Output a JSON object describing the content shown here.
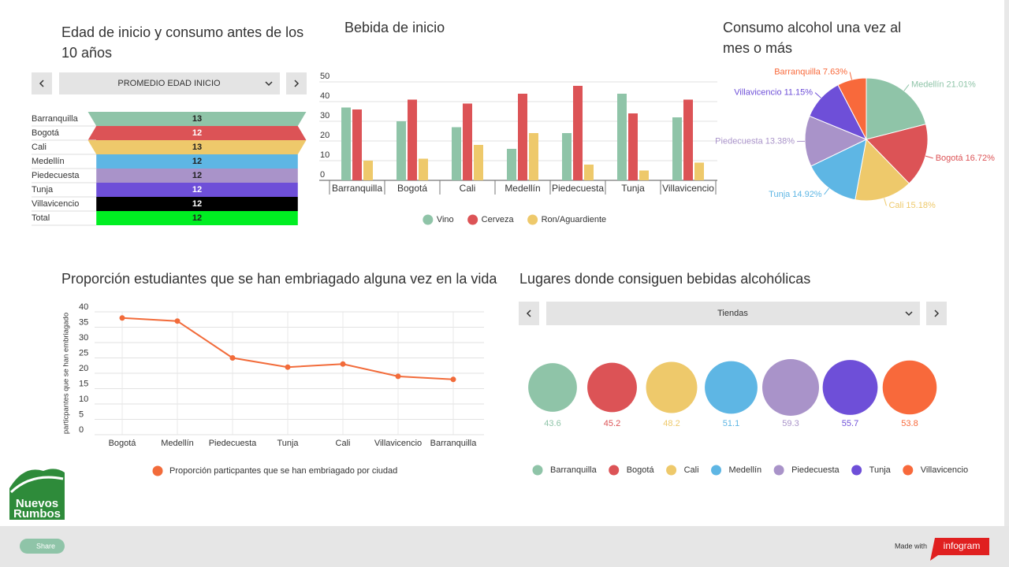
{
  "chart_data": [
    {
      "type": "funnel",
      "title": "Edad de inicio y consumo antes de los 10 años",
      "selector": "PROMEDIO EDAD INICIO",
      "categories": [
        "Barranquilla",
        "Bogotá",
        "Cali",
        "Medellín",
        "Piedecuesta",
        "Tunja",
        "Villavicencio",
        "Total"
      ],
      "values": [
        13,
        12,
        13,
        12,
        12,
        12,
        12,
        12
      ],
      "colors": [
        "#8fc4a8",
        "#dc5356",
        "#eec96b",
        "#5eb6e4",
        "#a993c9",
        "#6e4fd8",
        "#000000",
        "#00ee22"
      ]
    },
    {
      "type": "bar",
      "title": "Bebida de inicio",
      "categories": [
        "Barranquilla",
        "Bogotá",
        "Cali",
        "Medellín",
        "Piedecuesta",
        "Tunja",
        "Villavicencio"
      ],
      "series": [
        {
          "name": "Vino",
          "color": "#8fc4a8",
          "values": [
            37,
            30,
            27,
            16,
            24,
            44,
            32
          ]
        },
        {
          "name": "Cerveza",
          "color": "#dc5356",
          "values": [
            36,
            41,
            39,
            44,
            48,
            34,
            41
          ]
        },
        {
          "name": "Ron/Aguardiente",
          "color": "#eec96b",
          "values": [
            10,
            11,
            18,
            24,
            8,
            5,
            9
          ]
        }
      ],
      "ylim": [
        0,
        50
      ],
      "yticks": [
        0,
        10,
        20,
        30,
        40,
        50
      ],
      "grid": true,
      "legend": "bottom"
    },
    {
      "type": "pie",
      "title": "Consumo alcohol una vez al mes o más",
      "categories": [
        "Medellín",
        "Bogotá",
        "Cali",
        "Tunja",
        "Piedecuesta",
        "Villavicencio",
        "Barranquilla"
      ],
      "values": [
        21.01,
        16.72,
        15.18,
        14.92,
        13.38,
        11.15,
        7.63
      ],
      "value_labels": [
        "21.01%",
        "16.72%",
        "15.18%",
        "14.92%",
        "13.38%",
        "11.15%",
        "7.63%"
      ],
      "colors": [
        "#8fc4a8",
        "#dc5356",
        "#eec96b",
        "#5eb6e4",
        "#a993c9",
        "#6e4fd8",
        "#f8693b"
      ]
    },
    {
      "type": "line",
      "title": "Proporción estudiantes que se han embriagado alguna vez en la vida",
      "y_label": "particpantes que se han embriagado",
      "categories": [
        "Bogotá",
        "Medellín",
        "Piedecuesta",
        "Tunja",
        "Cali",
        "Villavicencio",
        "Barranquilla"
      ],
      "series": [
        {
          "name": "Proporción particpantes que se han embriagado por ciudad",
          "color": "#f26b3a",
          "values": [
            38,
            37,
            25,
            22,
            23,
            19,
            18
          ]
        }
      ],
      "ylim": [
        0,
        40
      ],
      "yticks": [
        0,
        5,
        10,
        15,
        20,
        25,
        30,
        35,
        40
      ],
      "grid": true,
      "legend": "bottom"
    },
    {
      "type": "bubble",
      "title": "Lugares donde consiguen bebidas alcohólicas",
      "selector": "Tiendas",
      "categories": [
        "Barranquilla",
        "Bogotá",
        "Cali",
        "Medellín",
        "Piedecuesta",
        "Tunja",
        "Villavicencio"
      ],
      "values": [
        43.6,
        45.2,
        48.2,
        51.1,
        59.3,
        55.7,
        53.8
      ],
      "colors": [
        "#8fc4a8",
        "#dc5356",
        "#eec96b",
        "#5eb6e4",
        "#a993c9",
        "#6e4fd8",
        "#f8693b"
      ]
    }
  ],
  "logo": {
    "line1": "Nuevos",
    "line2": "Rumbos"
  },
  "footer": {
    "share": "Share",
    "made_with": "Made with",
    "brand": "infogram"
  }
}
